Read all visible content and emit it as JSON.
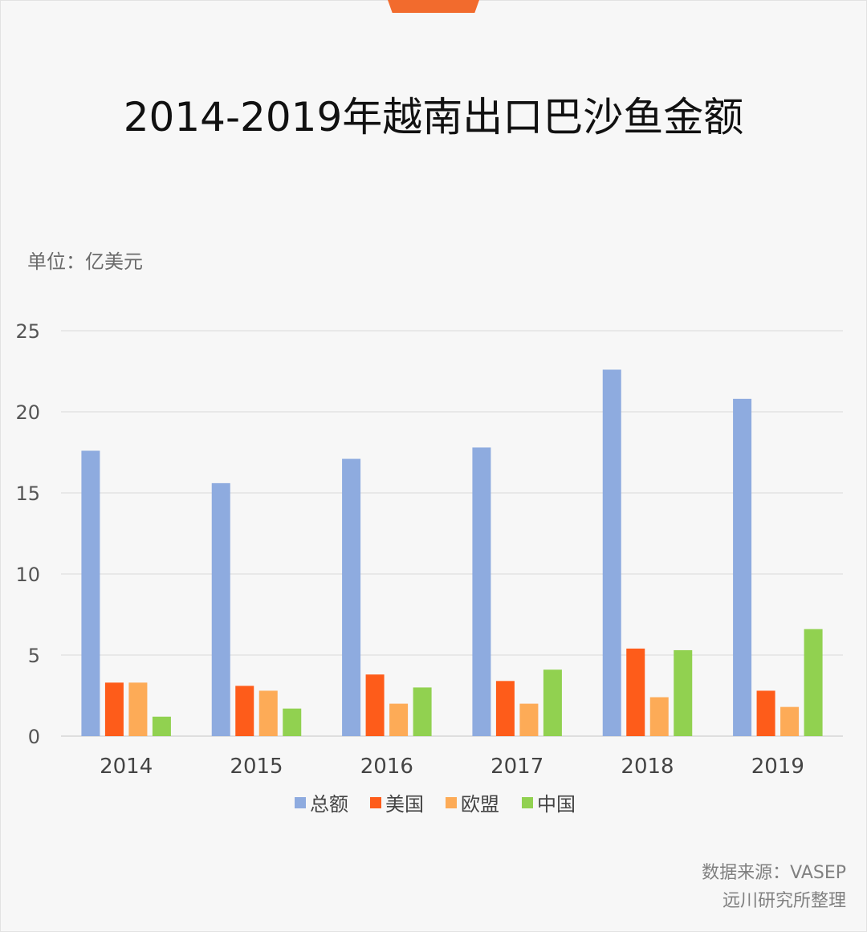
{
  "chart_data": {
    "type": "bar",
    "title": "2014-2019年越南出口巴沙鱼金额",
    "unit_label": "单位：亿美元",
    "categories": [
      "2014",
      "2015",
      "2016",
      "2017",
      "2018",
      "2019"
    ],
    "series": [
      {
        "name": "总额",
        "color": "#8eabdf",
        "values": [
          17.6,
          15.6,
          17.1,
          17.8,
          22.6,
          20.8
        ]
      },
      {
        "name": "美国",
        "color": "#fe5c1a",
        "values": [
          3.3,
          3.1,
          3.8,
          3.4,
          5.4,
          2.8
        ]
      },
      {
        "name": "欧盟",
        "color": "#fdab57",
        "values": [
          3.3,
          2.8,
          2.0,
          2.0,
          2.4,
          1.8
        ]
      },
      {
        "name": "中国",
        "color": "#91d150",
        "values": [
          1.2,
          1.7,
          3.0,
          4.1,
          5.3,
          6.6
        ]
      }
    ],
    "ylim": [
      0,
      25
    ],
    "yticks": [
      0,
      5,
      10,
      15,
      20,
      25
    ],
    "grid": true,
    "legend": "bottom"
  },
  "footer": {
    "source": "数据来源：VASEP",
    "credit": "远川研究所整理"
  }
}
